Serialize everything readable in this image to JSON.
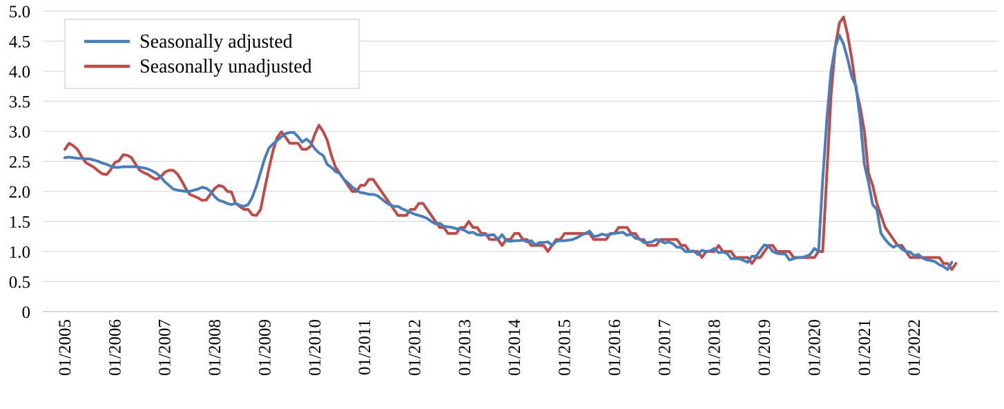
{
  "chart_data": {
    "type": "line",
    "title": "",
    "xlabel": "",
    "ylabel": "",
    "x_start": "01/2005",
    "x_end": "12/2022",
    "xticks": [
      "01/2005",
      "01/2006",
      "01/2007",
      "01/2008",
      "01/2009",
      "01/2010",
      "01/2011",
      "01/2012",
      "01/2013",
      "01/2014",
      "01/2015",
      "01/2016",
      "01/2017",
      "01/2018",
      "01/2019",
      "01/2020",
      "01/2021",
      "01/2022"
    ],
    "yticks": [
      "0",
      "0.5",
      "1.0",
      "1.5",
      "2.0",
      "2.5",
      "3.0",
      "3.5",
      "4.0",
      "4.5",
      "5.0"
    ],
    "ylim": [
      0,
      5
    ],
    "grid": "horizontal",
    "legend_position": "top-left",
    "series": [
      {
        "name": "Seasonally adjusted",
        "color": "#4A7EBB",
        "values": [
          2.56,
          2.57,
          2.56,
          2.55,
          2.55,
          2.54,
          2.54,
          2.52,
          2.5,
          2.47,
          2.45,
          2.42,
          2.4,
          2.4,
          2.41,
          2.41,
          2.41,
          2.41,
          2.4,
          2.39,
          2.37,
          2.34,
          2.3,
          2.24,
          2.16,
          2.1,
          2.04,
          2.02,
          2.01,
          2.0,
          2.0,
          2.02,
          2.04,
          2.07,
          2.05,
          2.0,
          1.91,
          1.85,
          1.83,
          1.8,
          1.78,
          1.8,
          1.77,
          1.75,
          1.78,
          1.9,
          2.09,
          2.32,
          2.55,
          2.72,
          2.79,
          2.85,
          2.91,
          2.96,
          2.98,
          2.98,
          2.91,
          2.82,
          2.87,
          2.81,
          2.71,
          2.64,
          2.6,
          2.45,
          2.4,
          2.33,
          2.3,
          2.2,
          2.14,
          2.07,
          2.02,
          1.98,
          1.97,
          1.95,
          1.95,
          1.93,
          1.88,
          1.82,
          1.78,
          1.75,
          1.75,
          1.71,
          1.68,
          1.65,
          1.62,
          1.6,
          1.58,
          1.55,
          1.5,
          1.46,
          1.47,
          1.42,
          1.41,
          1.4,
          1.38,
          1.38,
          1.35,
          1.31,
          1.32,
          1.28,
          1.27,
          1.28,
          1.27,
          1.28,
          1.2,
          1.28,
          1.18,
          1.17,
          1.18,
          1.18,
          1.19,
          1.16,
          1.18,
          1.11,
          1.15,
          1.15,
          1.16,
          1.1,
          1.17,
          1.18,
          1.18,
          1.19,
          1.2,
          1.23,
          1.27,
          1.3,
          1.34,
          1.25,
          1.26,
          1.29,
          1.27,
          1.29,
          1.3,
          1.31,
          1.32,
          1.27,
          1.29,
          1.22,
          1.21,
          1.15,
          1.15,
          1.16,
          1.2,
          1.18,
          1.14,
          1.16,
          1.13,
          1.07,
          1.07,
          1.0,
          1.0,
          1.01,
          0.95,
          1.02,
          1.0,
          1.01,
          1.05,
          0.98,
          0.99,
          0.97,
          0.88,
          0.88,
          0.88,
          0.85,
          0.82,
          0.92,
          0.92,
          1.02,
          1.11,
          1.09,
          1.0,
          0.97,
          0.96,
          0.96,
          0.86,
          0.88,
          0.9,
          0.9,
          0.92,
          0.95,
          1.05,
          1.0,
          2.2,
          3.2,
          4.0,
          4.4,
          4.6,
          4.45,
          4.2,
          3.9,
          3.75,
          3.2,
          2.45,
          2.15,
          1.78,
          1.7,
          1.3,
          1.2,
          1.12,
          1.07,
          1.11,
          1.04,
          1.0,
          0.99,
          0.93,
          0.95,
          0.89,
          0.86,
          0.85,
          0.83,
          0.78,
          0.75,
          0.7,
          0.82
        ]
      },
      {
        "name": "Seasonally unadjusted",
        "color": "#BE4B48",
        "values": [
          2.7,
          2.8,
          2.76,
          2.7,
          2.58,
          2.48,
          2.44,
          2.4,
          2.34,
          2.29,
          2.28,
          2.36,
          2.48,
          2.51,
          2.61,
          2.6,
          2.56,
          2.45,
          2.35,
          2.31,
          2.28,
          2.23,
          2.2,
          2.24,
          2.32,
          2.35,
          2.35,
          2.29,
          2.18,
          2.05,
          1.95,
          1.92,
          1.89,
          1.85,
          1.86,
          1.96,
          2.05,
          2.1,
          2.08,
          2.0,
          1.99,
          1.8,
          1.75,
          1.7,
          1.7,
          1.61,
          1.6,
          1.7,
          2.05,
          2.38,
          2.68,
          2.9,
          2.99,
          2.9,
          2.8,
          2.8,
          2.8,
          2.7,
          2.7,
          2.75,
          2.95,
          3.1,
          3.0,
          2.85,
          2.6,
          2.4,
          2.3,
          2.2,
          2.1,
          2.0,
          2.0,
          2.1,
          2.1,
          2.2,
          2.2,
          2.1,
          2.0,
          1.9,
          1.8,
          1.7,
          1.6,
          1.6,
          1.6,
          1.7,
          1.7,
          1.8,
          1.8,
          1.7,
          1.6,
          1.5,
          1.4,
          1.4,
          1.3,
          1.3,
          1.3,
          1.4,
          1.4,
          1.5,
          1.4,
          1.4,
          1.3,
          1.3,
          1.2,
          1.2,
          1.2,
          1.1,
          1.2,
          1.2,
          1.3,
          1.3,
          1.2,
          1.2,
          1.1,
          1.1,
          1.1,
          1.1,
          1.0,
          1.1,
          1.2,
          1.2,
          1.3,
          1.3,
          1.3,
          1.3,
          1.3,
          1.3,
          1.3,
          1.2,
          1.2,
          1.2,
          1.2,
          1.3,
          1.3,
          1.4,
          1.4,
          1.4,
          1.3,
          1.3,
          1.2,
          1.2,
          1.1,
          1.1,
          1.1,
          1.2,
          1.2,
          1.2,
          1.2,
          1.2,
          1.1,
          1.1,
          1.0,
          1.0,
          1.0,
          0.9,
          1.0,
          1.0,
          1.0,
          1.1,
          1.0,
          1.0,
          1.0,
          0.9,
          0.9,
          0.9,
          0.9,
          0.8,
          0.9,
          0.9,
          1.0,
          1.1,
          1.1,
          1.0,
          1.0,
          1.0,
          1.0,
          0.9,
          0.9,
          0.9,
          0.9,
          0.9,
          0.9,
          1.0,
          1.0,
          2.3,
          3.6,
          4.4,
          4.8,
          4.9,
          4.6,
          4.2,
          3.7,
          3.4,
          3.0,
          2.3,
          2.1,
          1.8,
          1.6,
          1.4,
          1.3,
          1.2,
          1.1,
          1.1,
          1.0,
          0.9,
          0.9,
          0.9,
          0.9,
          0.9,
          0.9,
          0.9,
          0.9,
          0.8,
          0.8,
          0.7,
          0.8
        ]
      }
    ]
  }
}
